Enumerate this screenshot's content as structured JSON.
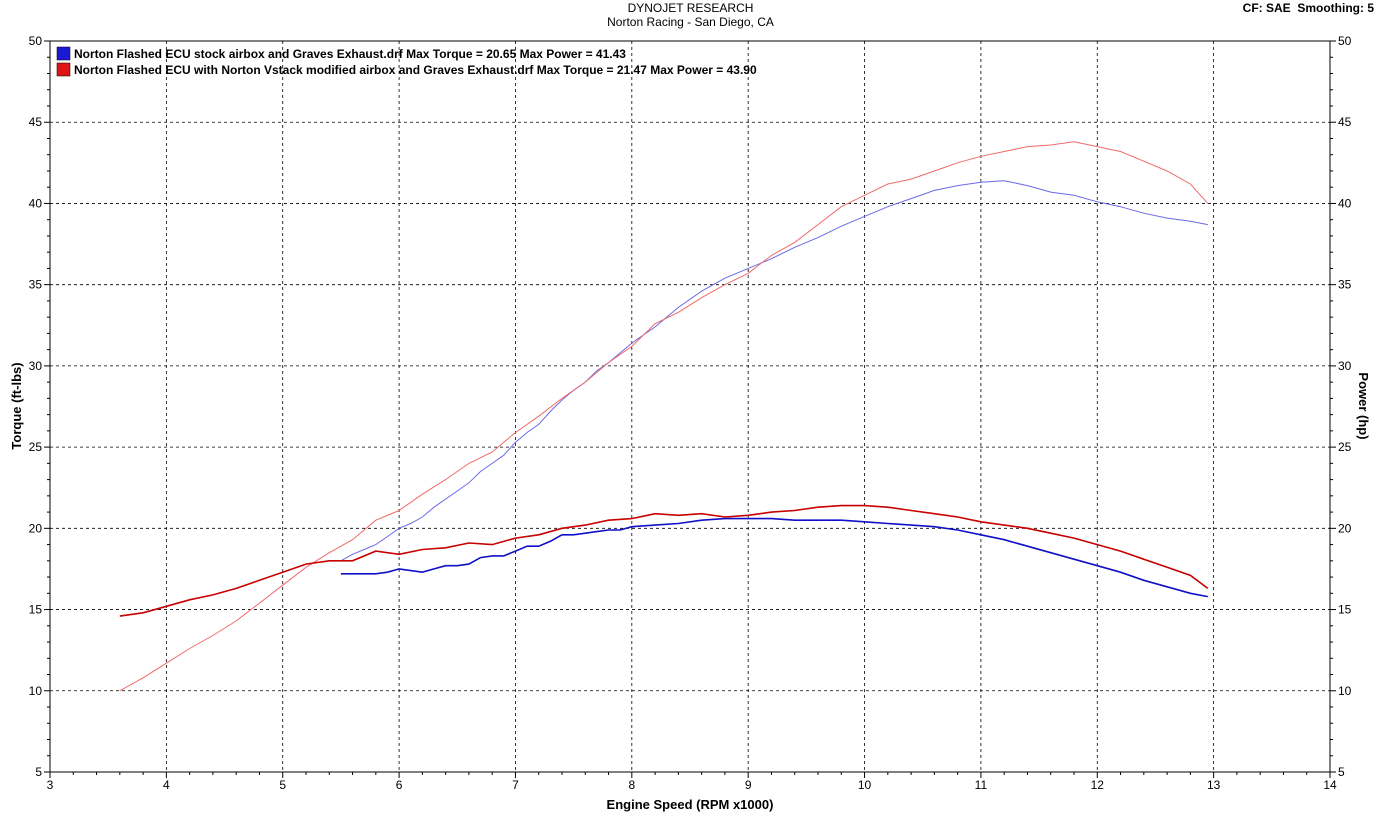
{
  "header": {
    "title": "DYNOJET RESEARCH",
    "subtitle": "Norton Racing - San Diego, CA",
    "info": "CF: SAE  Smoothing: 5"
  },
  "chart_data": {
    "type": "line",
    "xlabel": "Engine Speed (RPM x1000)",
    "ylabel_left": "Torque (ft-lbs)",
    "ylabel_right": "Power (hp)",
    "xlim": [
      3,
      14
    ],
    "ylim": [
      5,
      50
    ],
    "xticks": [
      3,
      4,
      5,
      6,
      7,
      8,
      9,
      10,
      11,
      12,
      13,
      14
    ],
    "yticks": [
      5,
      10,
      15,
      20,
      25,
      30,
      35,
      40,
      45,
      50
    ],
    "grid": true,
    "legend_position": "top-left",
    "series": [
      {
        "name": "Norton Flashed ECU stock airbox and Graves Exhaust.drf Max Torque = 20.65 Max Power = 41.43",
        "color": "#1010c8",
        "light_color": "#6a6ae6",
        "torque": {
          "x": [
            5.5,
            5.6,
            5.7,
            5.8,
            5.9,
            6.0,
            6.1,
            6.2,
            6.3,
            6.4,
            6.5,
            6.6,
            6.7,
            6.8,
            6.9,
            7.0,
            7.1,
            7.2,
            7.3,
            7.4,
            7.5,
            7.6,
            7.7,
            7.8,
            7.9,
            8.0,
            8.2,
            8.4,
            8.6,
            8.8,
            9.0,
            9.2,
            9.4,
            9.6,
            9.8,
            10.0,
            10.2,
            10.4,
            10.6,
            10.8,
            11.0,
            11.2,
            11.4,
            11.6,
            11.8,
            12.0,
            12.2,
            12.4,
            12.6,
            12.8,
            12.95
          ],
          "y": [
            17.2,
            17.2,
            17.2,
            17.2,
            17.3,
            17.5,
            17.4,
            17.3,
            17.5,
            17.7,
            17.7,
            17.8,
            18.2,
            18.3,
            18.3,
            18.6,
            18.9,
            18.9,
            19.2,
            19.6,
            19.6,
            19.7,
            19.8,
            19.9,
            19.9,
            20.1,
            20.2,
            20.3,
            20.5,
            20.6,
            20.6,
            20.6,
            20.5,
            20.5,
            20.5,
            20.4,
            20.3,
            20.2,
            20.1,
            19.9,
            19.6,
            19.3,
            18.9,
            18.5,
            18.1,
            17.7,
            17.3,
            16.8,
            16.4,
            16.0,
            15.8
          ]
        },
        "power": {
          "x": [
            5.5,
            5.6,
            5.7,
            5.8,
            5.9,
            6.0,
            6.1,
            6.2,
            6.3,
            6.4,
            6.5,
            6.6,
            6.7,
            6.8,
            6.9,
            7.0,
            7.1,
            7.2,
            7.3,
            7.4,
            7.5,
            7.6,
            7.7,
            7.8,
            7.9,
            8.0,
            8.2,
            8.4,
            8.6,
            8.8,
            9.0,
            9.2,
            9.4,
            9.6,
            9.8,
            10.0,
            10.2,
            10.4,
            10.6,
            10.8,
            11.0,
            11.2,
            11.4,
            11.6,
            11.8,
            12.0,
            12.2,
            12.4,
            12.6,
            12.8,
            12.95
          ],
          "y": [
            18.0,
            18.4,
            18.7,
            19.0,
            19.5,
            20.0,
            20.3,
            20.7,
            21.3,
            21.8,
            22.3,
            22.8,
            23.5,
            24.0,
            24.5,
            25.3,
            25.9,
            26.4,
            27.2,
            27.9,
            28.5,
            29.0,
            29.7,
            30.2,
            30.8,
            31.4,
            32.4,
            33.6,
            34.6,
            35.4,
            36.0,
            36.6,
            37.3,
            37.9,
            38.6,
            39.2,
            39.8,
            40.3,
            40.8,
            41.1,
            41.3,
            41.4,
            41.1,
            40.7,
            40.5,
            40.1,
            39.8,
            39.4,
            39.1,
            38.9,
            38.7
          ]
        }
      },
      {
        "name": "Norton Flashed ECU with Norton Vstack modified airbox and Graves Exhaust.drf Max Torque = 21.47 Max Power = 43.90",
        "color": "#c80000",
        "light_color": "#f06a6a",
        "torque": {
          "x": [
            3.6,
            3.8,
            4.0,
            4.2,
            4.4,
            4.6,
            4.8,
            5.0,
            5.2,
            5.4,
            5.6,
            5.8,
            6.0,
            6.2,
            6.4,
            6.6,
            6.8,
            7.0,
            7.2,
            7.4,
            7.6,
            7.8,
            8.0,
            8.2,
            8.4,
            8.6,
            8.8,
            9.0,
            9.2,
            9.4,
            9.6,
            9.8,
            10.0,
            10.2,
            10.4,
            10.6,
            10.8,
            11.0,
            11.2,
            11.4,
            11.6,
            11.8,
            12.0,
            12.2,
            12.4,
            12.6,
            12.8,
            12.95
          ],
          "y": [
            14.6,
            14.8,
            15.2,
            15.6,
            15.9,
            16.3,
            16.8,
            17.3,
            17.8,
            18.0,
            18.0,
            18.6,
            18.4,
            18.7,
            18.8,
            19.1,
            19.0,
            19.4,
            19.6,
            20.0,
            20.2,
            20.5,
            20.6,
            20.9,
            20.8,
            20.9,
            20.7,
            20.8,
            21.0,
            21.1,
            21.3,
            21.4,
            21.4,
            21.3,
            21.1,
            20.9,
            20.7,
            20.4,
            20.2,
            20.0,
            19.7,
            19.4,
            19.0,
            18.6,
            18.1,
            17.6,
            17.1,
            16.3
          ]
        },
        "power": {
          "x": [
            3.6,
            3.8,
            4.0,
            4.2,
            4.4,
            4.6,
            4.8,
            5.0,
            5.2,
            5.4,
            5.6,
            5.8,
            6.0,
            6.2,
            6.4,
            6.6,
            6.8,
            7.0,
            7.2,
            7.4,
            7.6,
            7.8,
            8.0,
            8.2,
            8.4,
            8.6,
            8.8,
            9.0,
            9.2,
            9.4,
            9.6,
            9.8,
            10.0,
            10.2,
            10.4,
            10.6,
            10.8,
            11.0,
            11.2,
            11.4,
            11.6,
            11.8,
            12.0,
            12.2,
            12.4,
            12.6,
            12.8,
            12.95
          ],
          "y": [
            10.0,
            10.8,
            11.7,
            12.6,
            13.4,
            14.3,
            15.4,
            16.5,
            17.6,
            18.5,
            19.3,
            20.5,
            21.1,
            22.1,
            23.0,
            24.0,
            24.7,
            25.9,
            26.9,
            28.0,
            29.0,
            30.2,
            31.2,
            32.6,
            33.3,
            34.2,
            35.0,
            35.7,
            36.8,
            37.6,
            38.7,
            39.8,
            40.5,
            41.2,
            41.5,
            42.0,
            42.5,
            42.9,
            43.2,
            43.5,
            43.6,
            43.8,
            43.5,
            43.2,
            42.6,
            42.0,
            41.2,
            40.0
          ]
        }
      }
    ]
  }
}
